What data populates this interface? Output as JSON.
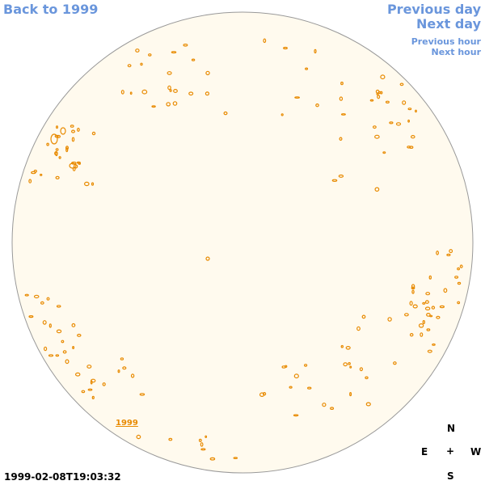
{
  "nav": {
    "back": "Back to 1999",
    "previous_day": "Previous day",
    "next_day": "Next day",
    "previous_hour": "Previous hour",
    "next_hour": "Next hour"
  },
  "compass": {
    "north": "N",
    "south": "S",
    "east": "E",
    "west": "W",
    "center": "+"
  },
  "timestamp": "1999-02-08T19:03:32",
  "year_link": "1999",
  "colors": {
    "link": "#6a96dc",
    "disk_fill": "#fffaee",
    "disk_edge": "#999999",
    "feature": "#e88a00"
  }
}
